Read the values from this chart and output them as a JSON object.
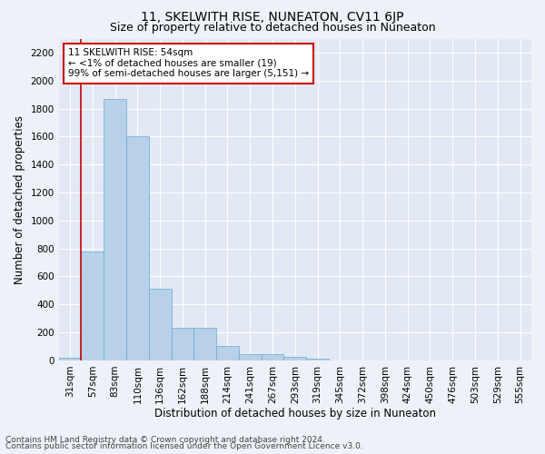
{
  "title": "11, SKELWITH RISE, NUNEATON, CV11 6JP",
  "subtitle": "Size of property relative to detached houses in Nuneaton",
  "xlabel": "Distribution of detached houses by size in Nuneaton",
  "ylabel": "Number of detached properties",
  "categories": [
    "31sqm",
    "57sqm",
    "83sqm",
    "110sqm",
    "136sqm",
    "162sqm",
    "188sqm",
    "214sqm",
    "241sqm",
    "267sqm",
    "293sqm",
    "319sqm",
    "345sqm",
    "372sqm",
    "398sqm",
    "424sqm",
    "450sqm",
    "476sqm",
    "503sqm",
    "529sqm",
    "555sqm"
  ],
  "values": [
    19,
    780,
    1870,
    1600,
    510,
    235,
    235,
    105,
    47,
    47,
    28,
    14,
    0,
    0,
    0,
    0,
    0,
    0,
    0,
    0,
    0
  ],
  "bar_color": "#b8d0e8",
  "bar_edge_color": "#6aaad4",
  "vline_color": "#cc0000",
  "annotation_text": "11 SKELWITH RISE: 54sqm\n← <1% of detached houses are smaller (19)\n99% of semi-detached houses are larger (5,151) →",
  "annotation_box_color": "#ffffff",
  "annotation_box_edge": "#cc0000",
  "ylim": [
    0,
    2300
  ],
  "yticks": [
    0,
    200,
    400,
    600,
    800,
    1000,
    1200,
    1400,
    1600,
    1800,
    2000,
    2200
  ],
  "footer_line1": "Contains HM Land Registry data © Crown copyright and database right 2024.",
  "footer_line2": "Contains public sector information licensed under the Open Government Licence v3.0.",
  "bg_color": "#eef2f8",
  "plot_bg_color": "#e2e9f4",
  "grid_color": "#ffffff",
  "title_fontsize": 10,
  "subtitle_fontsize": 9,
  "axis_label_fontsize": 8.5,
  "tick_fontsize": 7.5,
  "annotation_fontsize": 7.5,
  "footer_fontsize": 6.5
}
